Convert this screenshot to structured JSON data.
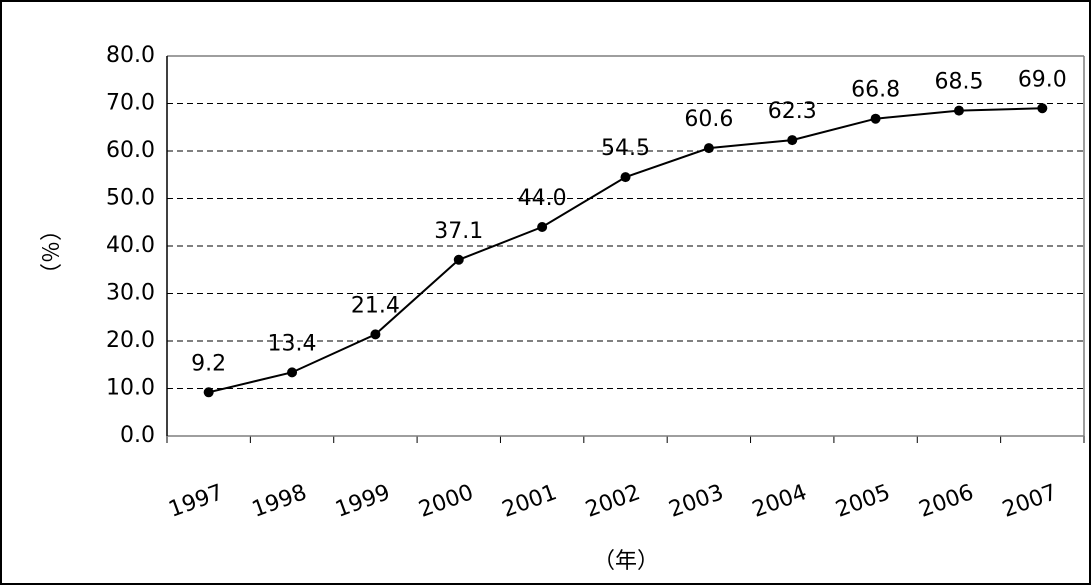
{
  "chart_data": {
    "type": "line",
    "categories": [
      "1997",
      "1998",
      "1999",
      "2000",
      "2001",
      "2002",
      "2003",
      "2004",
      "2005",
      "2006",
      "2007"
    ],
    "series": [
      {
        "values": [
          9.2,
          13.4,
          21.4,
          37.1,
          44.0,
          54.5,
          60.6,
          62.3,
          66.8,
          68.5,
          69.0
        ],
        "data_labels": [
          "9.2",
          "13.4",
          "21.4",
          "37.1",
          "44.0",
          "54.5",
          "60.6",
          "62.3",
          "66.8",
          "68.5",
          "69.0"
        ],
        "color": "#000000",
        "marker": "circle"
      }
    ],
    "y_ticks": [
      "0.0",
      "10.0",
      "20.0",
      "30.0",
      "40.0",
      "50.0",
      "60.0",
      "70.0",
      "80.0"
    ],
    "ylim": [
      0,
      80
    ],
    "xlabel": "（年）",
    "ylabel": "（％）",
    "grid": "horizontal-dashed",
    "legend": "none"
  }
}
